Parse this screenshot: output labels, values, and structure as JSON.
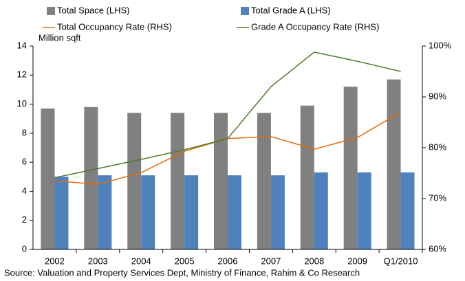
{
  "chart_data": {
    "type": "bar",
    "y_label": "Million sqft",
    "source": "Source: Valuation and Property Services Dept, Ministry of Finance, Rahim & Co Research",
    "categories": [
      "2002",
      "2003",
      "2004",
      "2005",
      "2006",
      "2007",
      "2008",
      "2009",
      "Q1/2010"
    ],
    "series": [
      {
        "name": "Total Space (LHS)",
        "type": "bar",
        "color": "#808080",
        "values": [
          9.7,
          9.8,
          9.4,
          9.4,
          9.4,
          9.4,
          9.9,
          11.2,
          11.7
        ]
      },
      {
        "name": "Total Grade A (LHS)",
        "type": "bar",
        "color": "#4f81bd",
        "values": [
          5.0,
          5.1,
          5.1,
          5.1,
          5.1,
          5.1,
          5.3,
          5.3,
          5.3
        ]
      },
      {
        "name": "Total Occupancy Rate (RHS)",
        "type": "line",
        "axis": "y2",
        "color": "#e46c0a",
        "values": [
          73.5,
          72.8,
          75.1,
          79.3,
          81.8,
          82.2,
          79.7,
          82.0,
          87.0
        ]
      },
      {
        "name": "Grade A Occupancy Rate (RHS)",
        "type": "line",
        "axis": "y2",
        "color": "#4f7a28",
        "values": [
          74.1,
          75.9,
          77.7,
          79.6,
          81.8,
          92.0,
          98.8,
          97.0,
          95.0
        ]
      }
    ],
    "ylim": [
      0,
      14
    ],
    "yticks": [
      0,
      2,
      4,
      6,
      8,
      10,
      12,
      14
    ],
    "y2lim": [
      60,
      100
    ],
    "y2ticks": [
      {
        "value": 60,
        "label": "60%"
      },
      {
        "value": 70,
        "label": "70%"
      },
      {
        "value": 80,
        "label": "80%"
      },
      {
        "value": 90,
        "label": "90%"
      },
      {
        "value": 100,
        "label": "100%"
      }
    ],
    "grid": false,
    "legend": "top"
  }
}
